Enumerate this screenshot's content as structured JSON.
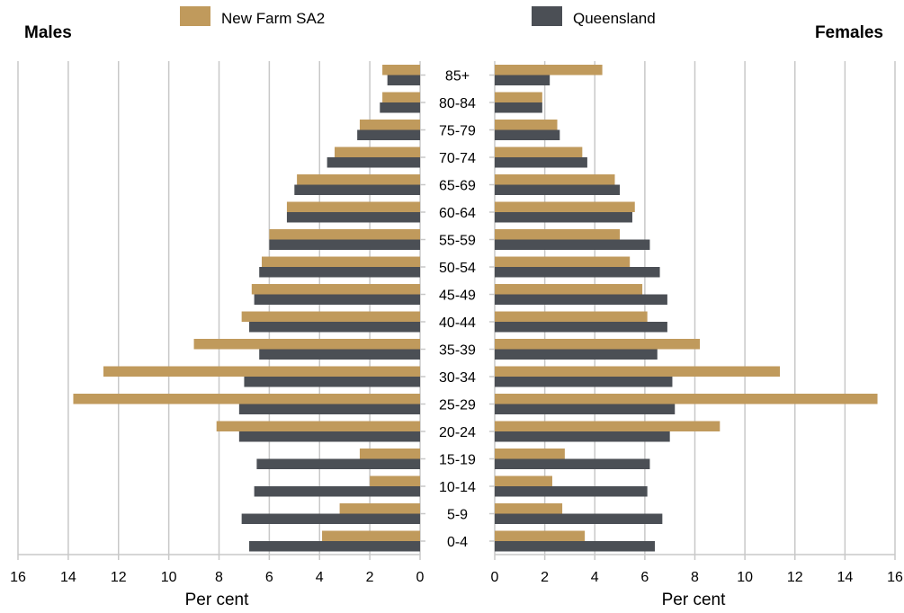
{
  "chart_data": {
    "type": "bar",
    "orientation": "horizontal",
    "left_title": "Males",
    "right_title": "Females",
    "xlabel_left": "Per cent",
    "xlabel_right": "Per cent",
    "xlim": [
      0,
      16
    ],
    "xticks": [
      0,
      2,
      4,
      6,
      8,
      10,
      12,
      14,
      16
    ],
    "grid": true,
    "legend_position": "top",
    "categories": [
      "85+",
      "80-84",
      "75-79",
      "70-74",
      "65-69",
      "60-64",
      "55-59",
      "50-54",
      "45-49",
      "40-44",
      "35-39",
      "30-34",
      "25-29",
      "20-24",
      "15-19",
      "10-14",
      "5-9",
      "0-4"
    ],
    "series": [
      {
        "name": "New Farm SA2",
        "color": "#c09a5c",
        "males": [
          1.5,
          1.5,
          2.4,
          3.4,
          4.9,
          5.3,
          6.0,
          6.3,
          6.7,
          7.1,
          9.0,
          12.6,
          13.8,
          8.1,
          2.4,
          2.0,
          3.2,
          3.9
        ],
        "females": [
          4.3,
          1.9,
          2.5,
          3.5,
          4.8,
          5.6,
          5.0,
          5.4,
          5.9,
          6.1,
          8.2,
          11.4,
          15.3,
          9.0,
          2.8,
          2.3,
          2.7,
          3.6
        ]
      },
      {
        "name": "Queensland",
        "color": "#4b4f55",
        "males": [
          1.3,
          1.6,
          2.5,
          3.7,
          5.0,
          5.3,
          6.0,
          6.4,
          6.6,
          6.8,
          6.4,
          7.0,
          7.2,
          7.2,
          6.5,
          6.6,
          7.1,
          6.8
        ],
        "females": [
          2.2,
          1.9,
          2.6,
          3.7,
          5.0,
          5.5,
          6.2,
          6.6,
          6.9,
          6.9,
          6.5,
          7.1,
          7.2,
          7.0,
          6.2,
          6.1,
          6.7,
          6.4
        ]
      }
    ]
  }
}
